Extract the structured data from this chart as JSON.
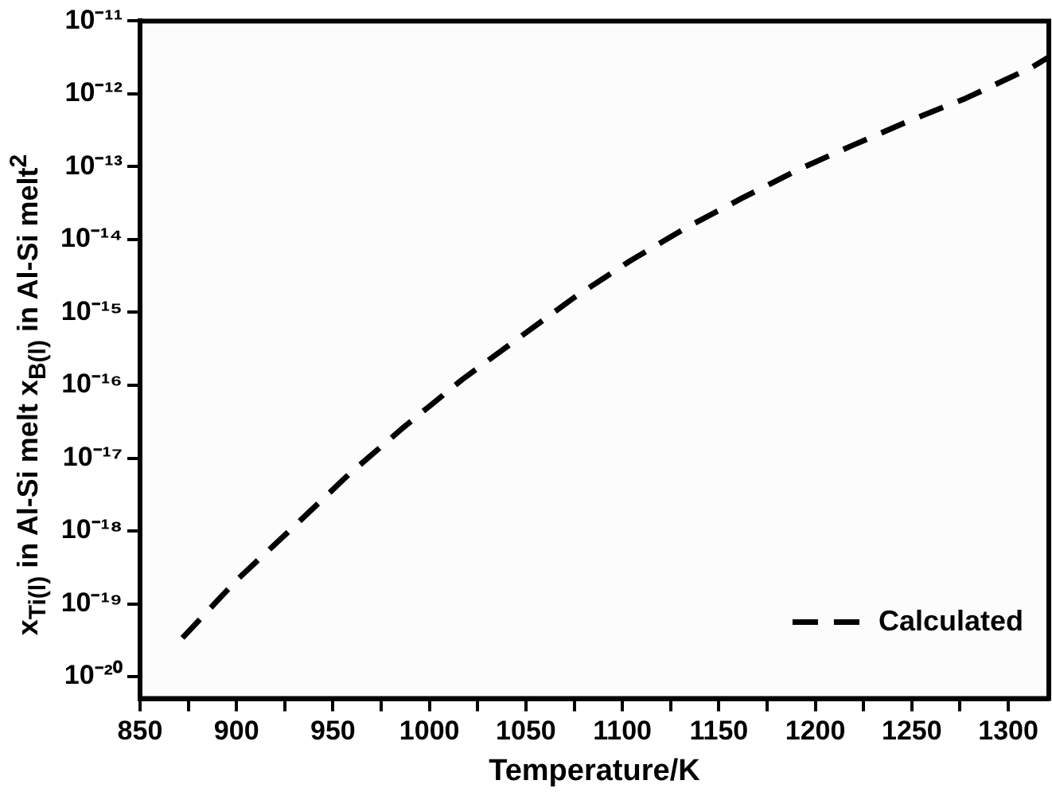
{
  "chart_data": {
    "type": "line",
    "xlabel": "Temperature/K",
    "ylabel": "x$_{Ti(l)}$ in Al-Si melt x$_{B(l)}$ in Al-Si melt$^{2}$",
    "x": [
      872,
      900,
      929,
      958,
      987,
      1017,
      1046,
      1075,
      1104,
      1134,
      1162,
      1191,
      1220,
      1249,
      1278,
      1312,
      1321
    ],
    "series": [
      {
        "name": "Calculated",
        "color": "#000000",
        "line_style": "dashed",
        "values": [
          3.4e-20,
          2.1e-19,
          1.1e-18,
          5.9e-18,
          2.7e-17,
          1.2e-16,
          4.4e-16,
          1.6e-15,
          5.1e-15,
          1.5e-14,
          3.7e-14,
          9.1e-14,
          2e-13,
          4.3e-13,
          8.7e-13,
          2.3e-12,
          3.2e-12
        ]
      }
    ],
    "log": "y",
    "xlim": [
      850,
      1321
    ],
    "ylim": [
      5e-21,
      1e-11
    ],
    "xticks": [
      850,
      {
        "value": 875,
        "label": null
      },
      900,
      {
        "value": 925,
        "label": null
      },
      950,
      {
        "value": 975,
        "label": null
      },
      1000,
      {
        "value": 1025,
        "label": null
      },
      1050,
      {
        "value": 1075,
        "label": null
      },
      1100,
      {
        "value": 1125,
        "label": null
      },
      1150,
      {
        "value": 1175,
        "label": null
      },
      1200,
      {
        "value": 1225,
        "label": null
      },
      1250,
      {
        "value": 1275,
        "label": null
      },
      1300
    ],
    "yticks": [
      {
        "value": 1e-20,
        "label": "10⁻²⁰"
      },
      {
        "value": 1e-19,
        "label": "10⁻¹⁹"
      },
      {
        "value": 1e-18,
        "label": "10⁻¹⁸"
      },
      {
        "value": 1e-17,
        "label": "10⁻¹⁷"
      },
      {
        "value": 1e-16,
        "label": "10⁻¹⁶"
      },
      {
        "value": 1e-15,
        "label": "10⁻¹⁵"
      },
      {
        "value": 1e-14,
        "label": "10⁻¹⁴"
      },
      {
        "value": 1e-13,
        "label": "10⁻¹³"
      },
      {
        "value": 1e-12,
        "label": "10⁻¹²"
      },
      {
        "value": 1e-11,
        "label": "10⁻¹¹"
      }
    ],
    "legend": "bottom right",
    "marker": "none"
  }
}
